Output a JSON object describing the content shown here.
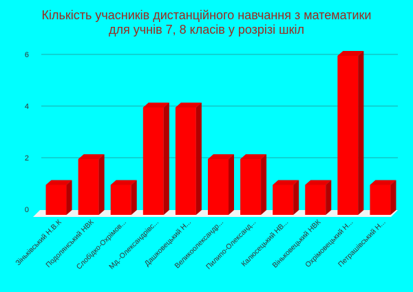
{
  "chart_data": {
    "type": "bar",
    "title_line1": "Кількість учасників дистанційного навчання з математики",
    "title_line2": "для учнів 7, 8 класів у розрізі шкіл",
    "categories": [
      "Зіньківський Н.В.К",
      "Подолянський НВК",
      "Слобідко-Охрімов...",
      "Мд.-Олександрівс...",
      "Дашковецький Н...",
      "Великоолександр...",
      "Пилипо-Олександ...",
      "Калюсецький НВ...",
      "Віньковецький НВК",
      "Охрімовецький Н...",
      "Петрашівський Н..."
    ],
    "values": [
      1,
      2,
      1,
      4,
      4,
      2,
      2,
      1,
      1,
      6,
      1
    ],
    "yticks": [
      "0",
      "2",
      "4",
      "6"
    ],
    "ylim": [
      0,
      6
    ],
    "grid": true,
    "colors": {
      "background": "#00ffff",
      "bar_front": "#ff0000",
      "bar_side": "#b30000",
      "bar_top": "#e60000",
      "floor": "#f2f2f2",
      "grid": "#1aa8a8",
      "title": "#9b2a1f"
    }
  }
}
